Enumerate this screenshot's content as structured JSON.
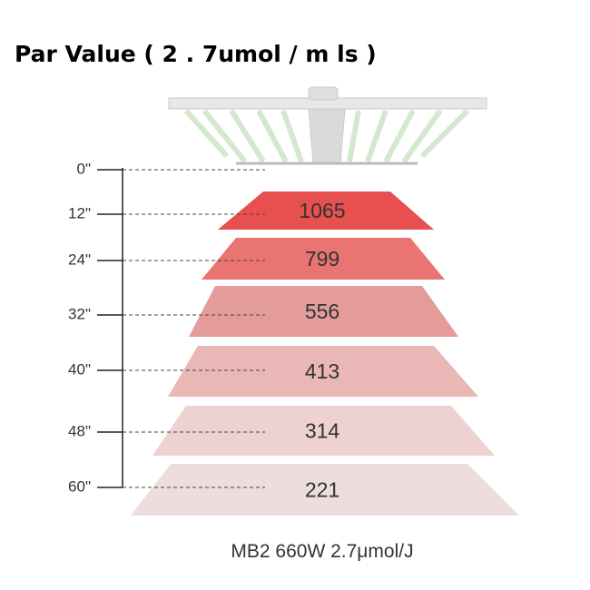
{
  "title": "Par Value ( 2 . 7umol / m ls )",
  "levels": [
    {
      "distance": "0\""
    },
    {
      "distance": "12\"",
      "par": 1065
    },
    {
      "distance": "24\"",
      "par": 799
    },
    {
      "distance": "32\"",
      "par": 556
    },
    {
      "distance": "40\"",
      "par": 413
    },
    {
      "distance": "48\"",
      "par": 314
    },
    {
      "distance": "60\"",
      "par": 221
    }
  ],
  "caption": "MB2 660W 2.7μmol/J"
}
